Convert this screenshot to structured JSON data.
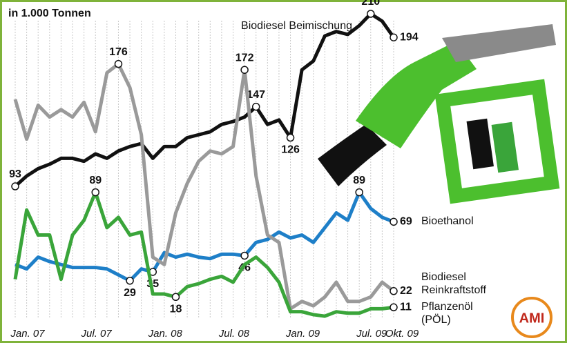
{
  "chart_data": {
    "type": "line",
    "title": "in 1.000 Tonnen",
    "categories": [
      "Jan. 07",
      null,
      null,
      null,
      null,
      null,
      "Jul. 07",
      null,
      null,
      null,
      null,
      null,
      "Jan. 08",
      null,
      null,
      null,
      null,
      null,
      "Jul. 08",
      null,
      null,
      null,
      null,
      null,
      "Jan. 09",
      null,
      null,
      null,
      null,
      null,
      "Jul. 09",
      null,
      null,
      "Okt. 09"
    ],
    "series": [
      {
        "name": "Biodiesel Beimischung",
        "color": "#111111",
        "values": [
          93,
          100,
          105,
          108,
          112,
          112,
          110,
          115,
          112,
          117,
          120,
          122,
          112,
          120,
          120,
          126,
          128,
          130,
          135,
          137,
          140,
          147,
          135,
          138,
          126,
          172,
          178,
          195,
          198,
          196,
          202,
          210,
          205,
          194
        ],
        "value_labels": [
          93,
          null,
          null,
          null,
          null,
          null,
          null,
          null,
          null,
          null,
          null,
          null,
          null,
          null,
          null,
          null,
          null,
          null,
          null,
          null,
          null,
          147,
          null,
          null,
          126,
          null,
          null,
          null,
          null,
          null,
          null,
          210,
          null,
          194
        ]
      },
      {
        "name": "Bioethanol",
        "color": "#1e7fc8",
        "values": [
          40,
          37,
          45,
          42,
          40,
          38,
          38,
          38,
          37,
          33,
          29,
          37,
          35,
          48,
          45,
          47,
          45,
          44,
          47,
          47,
          46,
          55,
          57,
          62,
          58,
          60,
          55,
          65,
          75,
          70,
          89,
          78,
          72,
          69
        ],
        "value_labels": [
          null,
          null,
          null,
          null,
          null,
          null,
          null,
          null,
          null,
          null,
          29,
          null,
          35,
          null,
          null,
          null,
          null,
          null,
          null,
          null,
          46,
          null,
          null,
          null,
          null,
          null,
          null,
          null,
          null,
          null,
          89,
          null,
          null,
          69
        ]
      },
      {
        "name": "Biodiesel Reinkraftstoff",
        "color": "#9a9a9a",
        "values": [
          152,
          125,
          148,
          140,
          145,
          140,
          150,
          130,
          170,
          176,
          160,
          128,
          45,
          40,
          75,
          95,
          110,
          117,
          115,
          120,
          172,
          100,
          60,
          55,
          10,
          15,
          12,
          18,
          28,
          15,
          15,
          18,
          28,
          22
        ],
        "value_labels": [
          null,
          null,
          null,
          null,
          null,
          null,
          null,
          null,
          null,
          176,
          null,
          null,
          null,
          null,
          null,
          null,
          null,
          null,
          null,
          null,
          172,
          null,
          null,
          null,
          null,
          null,
          null,
          null,
          null,
          null,
          null,
          null,
          null,
          22
        ]
      },
      {
        "name": "Pflanzenöl (PÖL)",
        "color": "#3aa53a",
        "values": [
          30,
          77,
          60,
          60,
          30,
          60,
          70,
          89,
          65,
          72,
          60,
          62,
          20,
          20,
          18,
          25,
          27,
          30,
          32,
          28,
          40,
          45,
          38,
          28,
          8,
          8,
          6,
          5,
          8,
          7,
          7,
          10,
          10,
          11
        ],
        "value_labels": [
          null,
          null,
          null,
          null,
          null,
          null,
          null,
          89,
          null,
          null,
          null,
          null,
          null,
          null,
          18,
          null,
          null,
          null,
          null,
          null,
          null,
          null,
          null,
          null,
          null,
          null,
          null,
          null,
          null,
          null,
          null,
          null,
          null,
          11
        ]
      }
    ],
    "grid": true,
    "logo": "AMI"
  }
}
